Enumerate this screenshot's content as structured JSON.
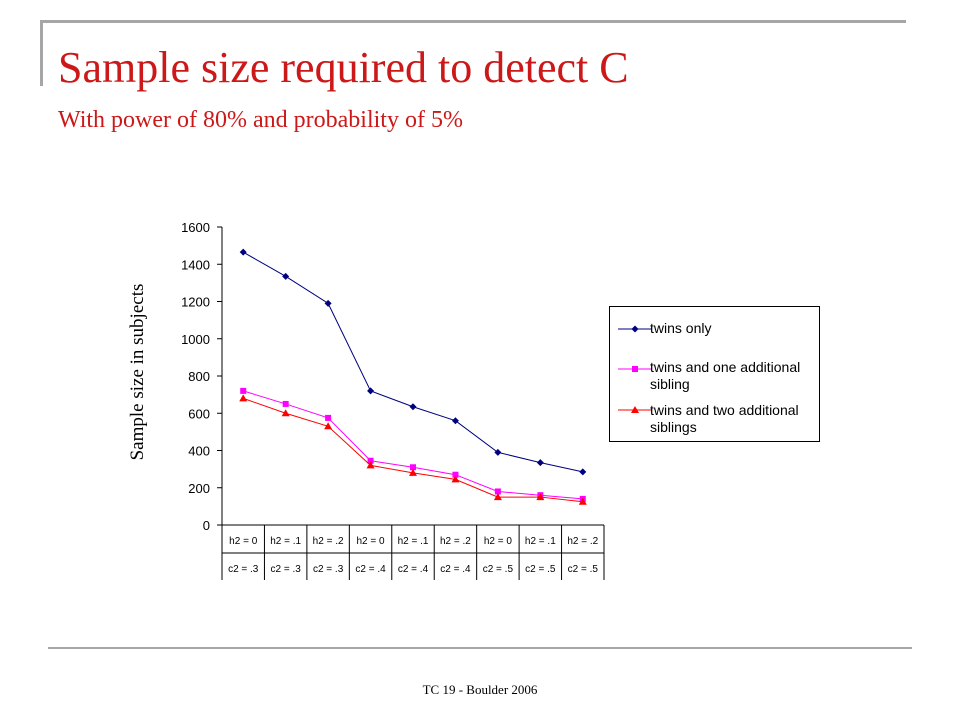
{
  "slide": {
    "title": "Sample size required to detect C",
    "subtitle": "With power of 80% and probability of 5%",
    "footer": "TC 19 - Boulder 2006"
  },
  "colors": {
    "title": "#cc1818",
    "twins_only": "#000080",
    "one_sibling": "#ff00ff",
    "two_siblings": "#ff0000"
  },
  "chart_data": {
    "type": "line",
    "title": "",
    "xlabel": "",
    "ylabel": "Sample size in subjects",
    "ylim": [
      0,
      1600
    ],
    "yticks": [
      0,
      200,
      400,
      600,
      800,
      1000,
      1200,
      1400,
      1600
    ],
    "categories": [
      [
        "h2 = 0",
        "c2 = .3"
      ],
      [
        "h2 = .1",
        "c2 = .3"
      ],
      [
        "h2 = .2",
        "c2 = .3"
      ],
      [
        "h2 = 0",
        "c2 = .4"
      ],
      [
        "h2 = .1",
        "c2 = .4"
      ],
      [
        "h2 = .2",
        "c2 = .4"
      ],
      [
        "h2 = 0",
        "c2 = .5"
      ],
      [
        "h2 = .1",
        "c2 = .5"
      ],
      [
        "h2 = .2",
        "c2 = .5"
      ]
    ],
    "series": [
      {
        "name": "twins only",
        "marker": "diamond",
        "color": "#000080",
        "values": [
          1465,
          1335,
          1190,
          720,
          635,
          560,
          390,
          335,
          285
        ]
      },
      {
        "name": "twins and one additional sibling",
        "marker": "square",
        "color": "#ff00ff",
        "values": [
          720,
          650,
          575,
          345,
          310,
          270,
          180,
          160,
          140
        ]
      },
      {
        "name": "twins and two additional siblings",
        "marker": "triangle",
        "color": "#ff0000",
        "values": [
          680,
          600,
          530,
          320,
          280,
          245,
          150,
          150,
          125
        ]
      }
    ],
    "grid": false,
    "legend_position": "right"
  }
}
